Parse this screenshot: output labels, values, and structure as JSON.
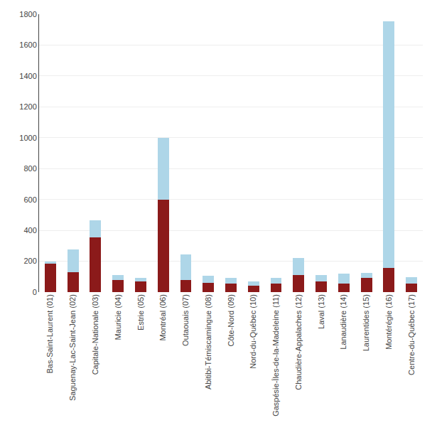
{
  "chart_data": {
    "type": "bar",
    "stacked": true,
    "grid": true,
    "categories": [
      "Bas-Saint-Laurent (01)",
      "Saguenay-Lac-Saint-Jean (02)",
      "Capitale-Nationale (03)",
      "Mauricie (04)",
      "Estrie (05)",
      "Montréal (06)",
      "Outaouais (07)",
      "Abitibi-Témiscamingue (08)",
      "Côte-Nord (09)",
      "Nord-du-Québec (10)",
      "Gaspésie-Îles-de-la-Madeleine (11)",
      "Chaudière-Appalaches (12)",
      "Laval (13)",
      "Lanaudière (14)",
      "Laurentides (15)",
      "Montérégie (16)",
      "Centre-du-Québec (17)"
    ],
    "series": [
      {
        "color": "#8B1A1A",
        "values": [
          185,
          130,
          355,
          80,
          70,
          600,
          80,
          60,
          55,
          40,
          55,
          110,
          70,
          55,
          90,
          155,
          55
        ]
      },
      {
        "color": "#aed6e8",
        "values": [
          15,
          145,
          110,
          30,
          20,
          400,
          165,
          45,
          35,
          30,
          35,
          110,
          40,
          65,
          35,
          1600,
          40
        ]
      }
    ],
    "ylim": [
      0,
      1800
    ],
    "yticks": [
      0,
      200,
      400,
      600,
      800,
      1000,
      1200,
      1400,
      1600,
      1800
    ]
  }
}
